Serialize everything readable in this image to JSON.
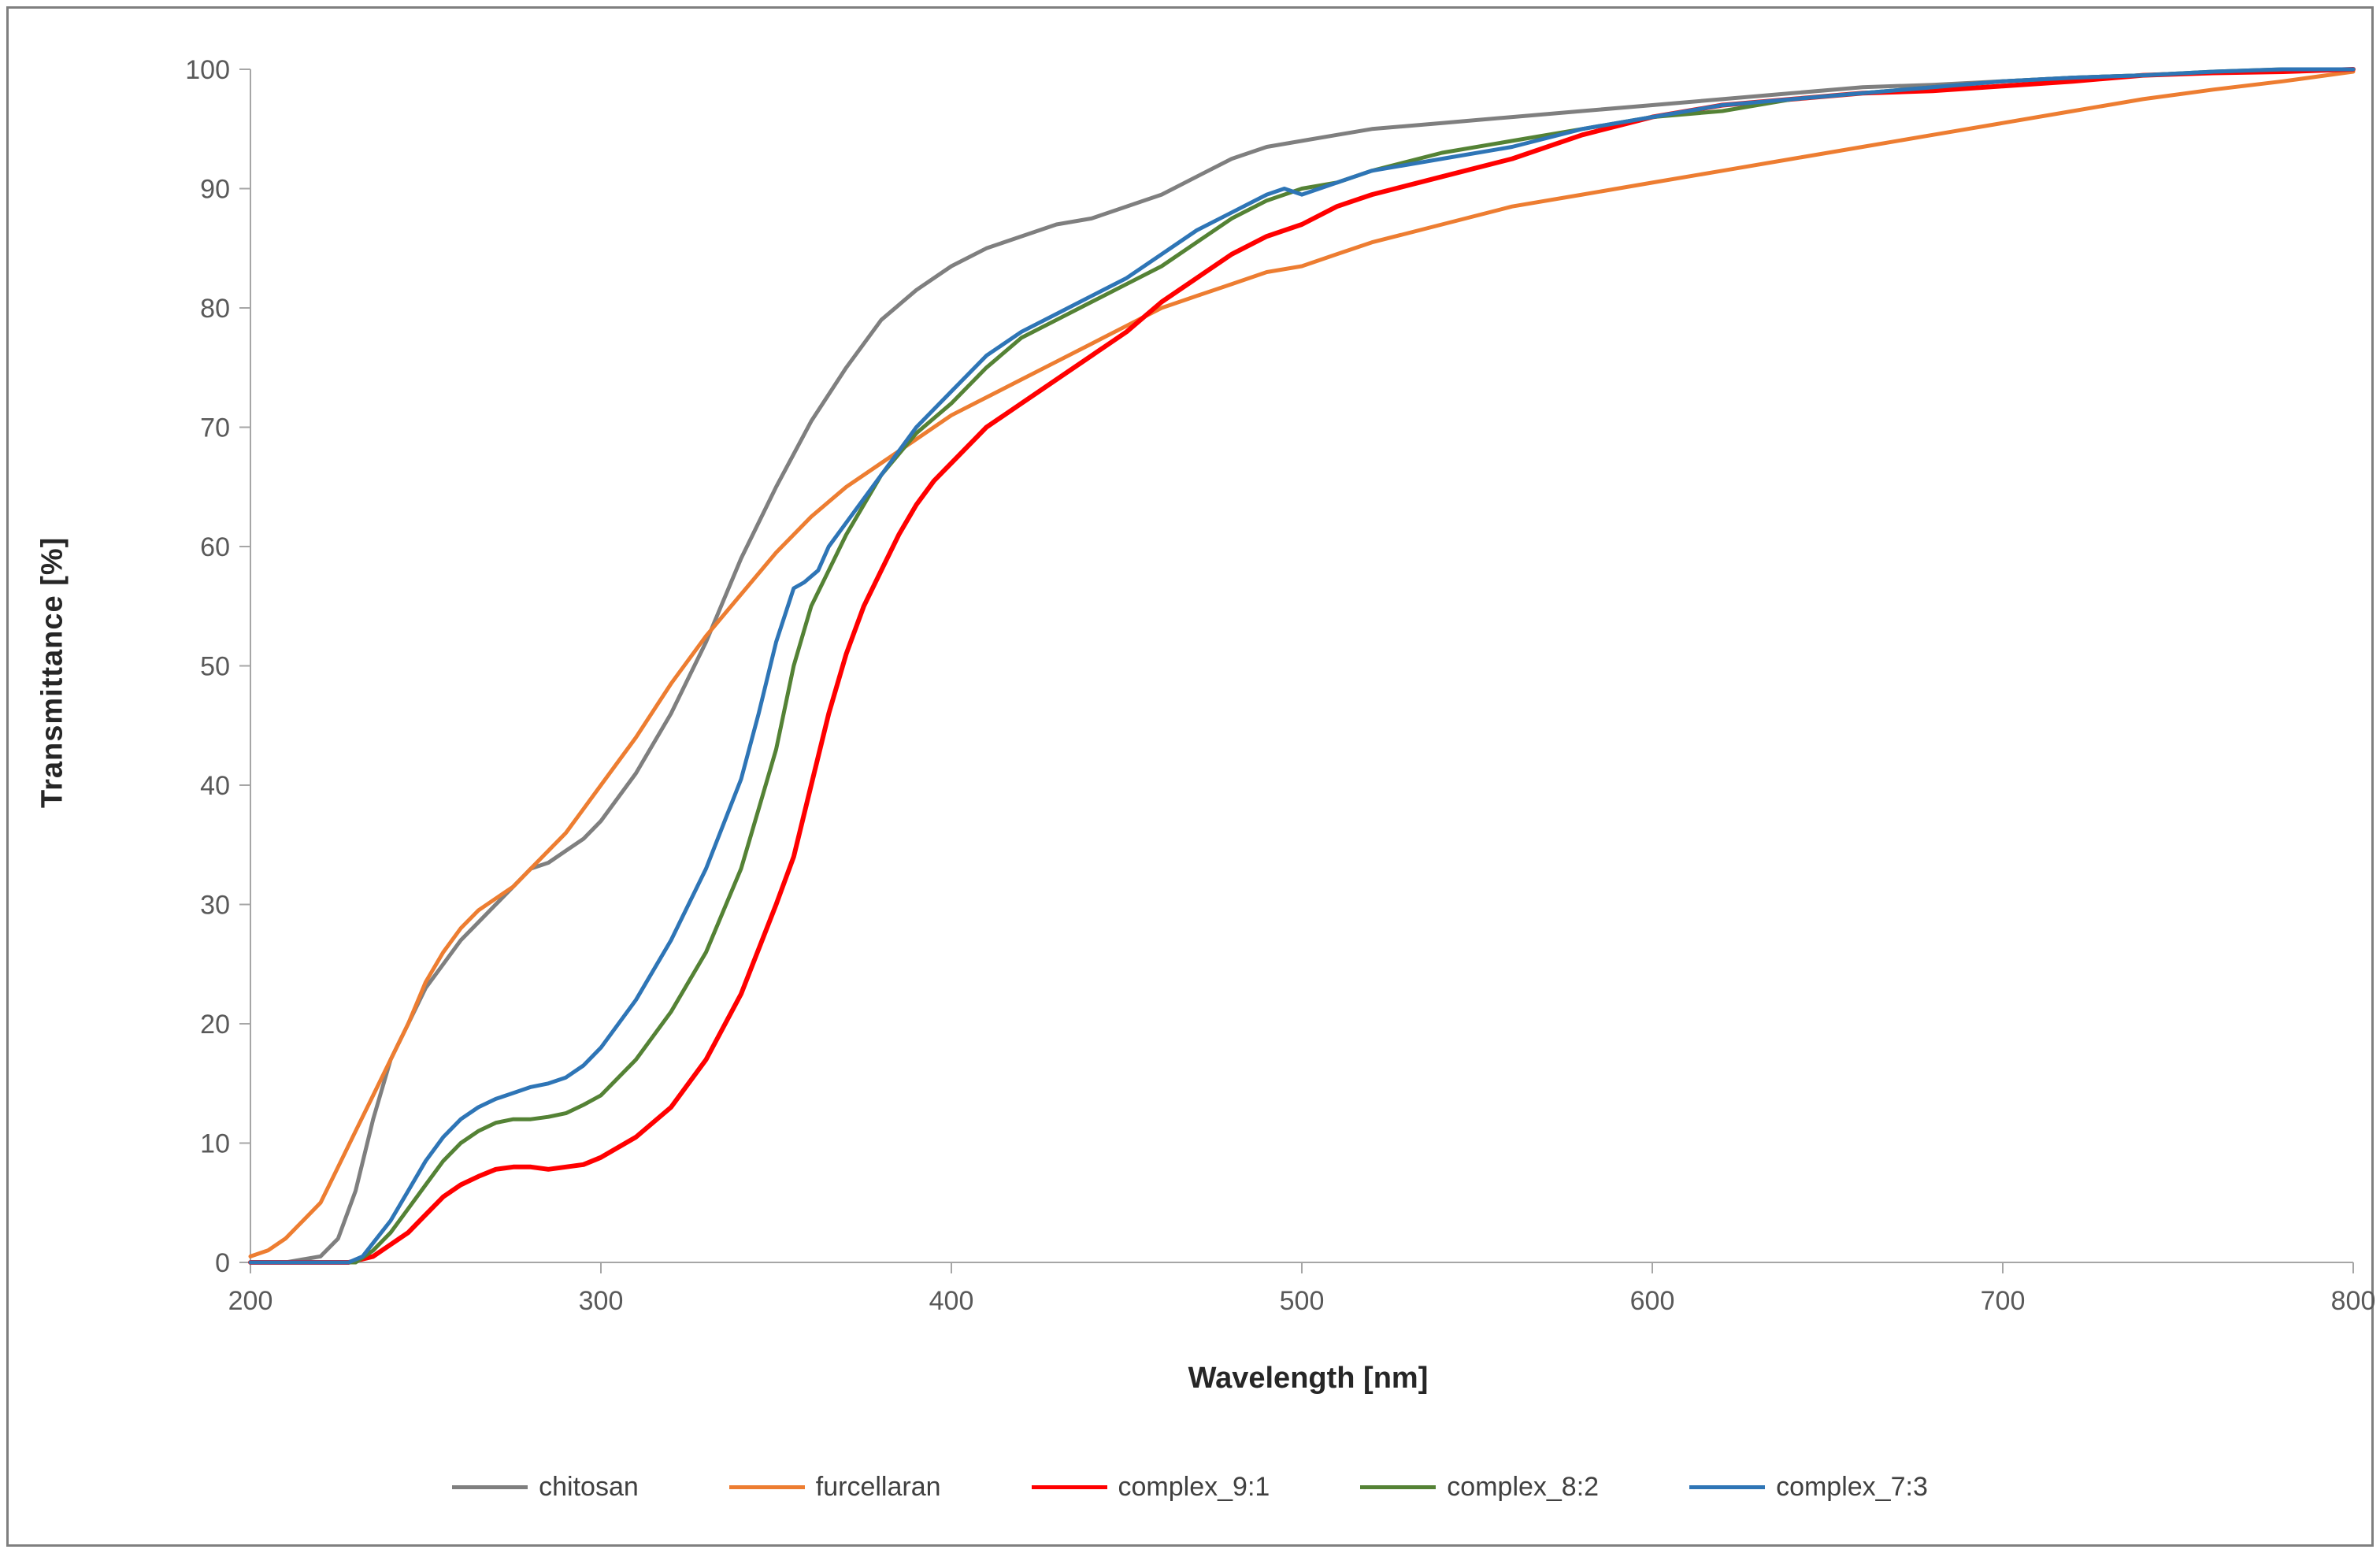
{
  "chart_data": {
    "type": "line",
    "title": "",
    "xlabel": "Wavelength [nm]",
    "ylabel": "Transmittance  [%]",
    "xlim": [
      200,
      800
    ],
    "ylim": [
      0,
      100
    ],
    "x_ticks": [
      200,
      300,
      400,
      500,
      600,
      700,
      800
    ],
    "y_ticks": [
      0,
      10,
      20,
      30,
      40,
      50,
      60,
      70,
      80,
      90,
      100
    ],
    "grid": false,
    "legend_position": "bottom",
    "axis_color": "#a6a6a6",
    "tick_label_color": "#595959",
    "series": [
      {
        "name": "chitosan",
        "color": "#7f7f7f",
        "width": 5,
        "points": [
          [
            200,
            0
          ],
          [
            210,
            0
          ],
          [
            220,
            0.5
          ],
          [
            225,
            2
          ],
          [
            230,
            6
          ],
          [
            235,
            12
          ],
          [
            240,
            17
          ],
          [
            245,
            20
          ],
          [
            250,
            23
          ],
          [
            255,
            25
          ],
          [
            260,
            27
          ],
          [
            265,
            28.5
          ],
          [
            270,
            30
          ],
          [
            275,
            31.5
          ],
          [
            280,
            33
          ],
          [
            285,
            33.5
          ],
          [
            290,
            34.5
          ],
          [
            295,
            35.5
          ],
          [
            300,
            37
          ],
          [
            310,
            41
          ],
          [
            320,
            46
          ],
          [
            330,
            52
          ],
          [
            340,
            59
          ],
          [
            350,
            65
          ],
          [
            360,
            70.5
          ],
          [
            370,
            75
          ],
          [
            380,
            79
          ],
          [
            390,
            81.5
          ],
          [
            400,
            83.5
          ],
          [
            410,
            85
          ],
          [
            420,
            86
          ],
          [
            430,
            87
          ],
          [
            440,
            87.5
          ],
          [
            450,
            88.5
          ],
          [
            460,
            89.5
          ],
          [
            470,
            91
          ],
          [
            480,
            92.5
          ],
          [
            490,
            93.5
          ],
          [
            500,
            94
          ],
          [
            510,
            94.5
          ],
          [
            520,
            95
          ],
          [
            540,
            95.5
          ],
          [
            560,
            96
          ],
          [
            580,
            96.5
          ],
          [
            600,
            97
          ],
          [
            620,
            97.5
          ],
          [
            640,
            98
          ],
          [
            660,
            98.5
          ],
          [
            680,
            98.7
          ],
          [
            700,
            99
          ],
          [
            720,
            99.3
          ],
          [
            740,
            99.5
          ],
          [
            760,
            99.7
          ],
          [
            780,
            99.8
          ],
          [
            800,
            100
          ]
        ]
      },
      {
        "name": "furcellaran",
        "color": "#ed7d31",
        "width": 5,
        "points": [
          [
            200,
            0.5
          ],
          [
            205,
            1
          ],
          [
            210,
            2
          ],
          [
            215,
            3.5
          ],
          [
            220,
            5
          ],
          [
            225,
            8
          ],
          [
            230,
            11
          ],
          [
            235,
            14
          ],
          [
            240,
            17
          ],
          [
            245,
            20
          ],
          [
            250,
            23.5
          ],
          [
            255,
            26
          ],
          [
            260,
            28
          ],
          [
            265,
            29.5
          ],
          [
            270,
            30.5
          ],
          [
            275,
            31.5
          ],
          [
            280,
            33
          ],
          [
            285,
            34.5
          ],
          [
            290,
            36
          ],
          [
            295,
            38
          ],
          [
            300,
            40
          ],
          [
            310,
            44
          ],
          [
            320,
            48.5
          ],
          [
            330,
            52.5
          ],
          [
            340,
            56
          ],
          [
            350,
            59.5
          ],
          [
            360,
            62.5
          ],
          [
            370,
            65
          ],
          [
            380,
            67
          ],
          [
            390,
            69
          ],
          [
            400,
            71
          ],
          [
            410,
            72.5
          ],
          [
            420,
            74
          ],
          [
            430,
            75.5
          ],
          [
            440,
            77
          ],
          [
            450,
            78.5
          ],
          [
            460,
            80
          ],
          [
            470,
            81
          ],
          [
            480,
            82
          ],
          [
            490,
            83
          ],
          [
            500,
            83.5
          ],
          [
            510,
            84.5
          ],
          [
            520,
            85.5
          ],
          [
            540,
            87
          ],
          [
            560,
            88.5
          ],
          [
            580,
            89.5
          ],
          [
            600,
            90.5
          ],
          [
            620,
            91.5
          ],
          [
            640,
            92.5
          ],
          [
            660,
            93.5
          ],
          [
            680,
            94.5
          ],
          [
            700,
            95.5
          ],
          [
            720,
            96.5
          ],
          [
            740,
            97.5
          ],
          [
            760,
            98.3
          ],
          [
            780,
            99
          ],
          [
            800,
            99.8
          ]
        ]
      },
      {
        "name": "complex_9:1",
        "color": "#ff0000",
        "width": 6,
        "points": [
          [
            200,
            0
          ],
          [
            228,
            0
          ],
          [
            235,
            0.5
          ],
          [
            240,
            1.5
          ],
          [
            245,
            2.5
          ],
          [
            250,
            4
          ],
          [
            255,
            5.5
          ],
          [
            260,
            6.5
          ],
          [
            265,
            7.2
          ],
          [
            270,
            7.8
          ],
          [
            275,
            8
          ],
          [
            280,
            8
          ],
          [
            285,
            7.8
          ],
          [
            290,
            8
          ],
          [
            295,
            8.2
          ],
          [
            300,
            8.8
          ],
          [
            310,
            10.5
          ],
          [
            320,
            13
          ],
          [
            330,
            17
          ],
          [
            340,
            22.5
          ],
          [
            350,
            30
          ],
          [
            355,
            34
          ],
          [
            360,
            40
          ],
          [
            365,
            46
          ],
          [
            370,
            51
          ],
          [
            375,
            55
          ],
          [
            380,
            58
          ],
          [
            385,
            61
          ],
          [
            390,
            63.5
          ],
          [
            395,
            65.5
          ],
          [
            400,
            67
          ],
          [
            410,
            70
          ],
          [
            420,
            72
          ],
          [
            430,
            74
          ],
          [
            440,
            76
          ],
          [
            450,
            78
          ],
          [
            460,
            80.5
          ],
          [
            470,
            82.5
          ],
          [
            480,
            84.5
          ],
          [
            490,
            86
          ],
          [
            500,
            87
          ],
          [
            510,
            88.5
          ],
          [
            520,
            89.5
          ],
          [
            540,
            91
          ],
          [
            560,
            92.5
          ],
          [
            580,
            94.5
          ],
          [
            600,
            96
          ],
          [
            620,
            97
          ],
          [
            640,
            97.5
          ],
          [
            660,
            98
          ],
          [
            680,
            98.2
          ],
          [
            700,
            98.6
          ],
          [
            720,
            99
          ],
          [
            740,
            99.5
          ],
          [
            760,
            99.7
          ],
          [
            780,
            99.8
          ],
          [
            800,
            100
          ]
        ]
      },
      {
        "name": "complex_8:2",
        "color": "#548235",
        "width": 5,
        "points": [
          [
            200,
            0
          ],
          [
            230,
            0
          ],
          [
            235,
            1
          ],
          [
            240,
            2.5
          ],
          [
            245,
            4.5
          ],
          [
            250,
            6.5
          ],
          [
            255,
            8.5
          ],
          [
            260,
            10
          ],
          [
            265,
            11
          ],
          [
            270,
            11.7
          ],
          [
            275,
            12
          ],
          [
            280,
            12
          ],
          [
            285,
            12.2
          ],
          [
            290,
            12.5
          ],
          [
            295,
            13.2
          ],
          [
            300,
            14
          ],
          [
            310,
            17
          ],
          [
            320,
            21
          ],
          [
            330,
            26
          ],
          [
            340,
            33
          ],
          [
            345,
            38
          ],
          [
            350,
            43
          ],
          [
            355,
            50
          ],
          [
            360,
            55
          ],
          [
            365,
            58
          ],
          [
            370,
            61
          ],
          [
            380,
            66
          ],
          [
            390,
            69.5
          ],
          [
            400,
            72
          ],
          [
            410,
            75
          ],
          [
            420,
            77.5
          ],
          [
            430,
            79
          ],
          [
            440,
            80.5
          ],
          [
            450,
            82
          ],
          [
            460,
            83.5
          ],
          [
            470,
            85.5
          ],
          [
            480,
            87.5
          ],
          [
            490,
            89
          ],
          [
            500,
            90
          ],
          [
            510,
            90.5
          ],
          [
            520,
            91.5
          ],
          [
            540,
            93
          ],
          [
            560,
            94
          ],
          [
            580,
            95
          ],
          [
            600,
            96
          ],
          [
            620,
            96.5
          ],
          [
            640,
            97.5
          ],
          [
            660,
            98
          ],
          [
            680,
            98.5
          ],
          [
            700,
            99
          ],
          [
            720,
            99.3
          ],
          [
            740,
            99.5
          ],
          [
            760,
            99.8
          ],
          [
            780,
            100
          ],
          [
            800,
            100
          ]
        ]
      },
      {
        "name": "complex_7:3",
        "color": "#2e75b6",
        "width": 5,
        "points": [
          [
            200,
            0
          ],
          [
            228,
            0
          ],
          [
            232,
            0.5
          ],
          [
            236,
            2
          ],
          [
            240,
            3.5
          ],
          [
            245,
            6
          ],
          [
            250,
            8.5
          ],
          [
            255,
            10.5
          ],
          [
            260,
            12
          ],
          [
            265,
            13
          ],
          [
            270,
            13.7
          ],
          [
            275,
            14.2
          ],
          [
            280,
            14.7
          ],
          [
            285,
            15
          ],
          [
            290,
            15.5
          ],
          [
            295,
            16.5
          ],
          [
            300,
            18
          ],
          [
            310,
            22
          ],
          [
            320,
            27
          ],
          [
            330,
            33
          ],
          [
            340,
            40.5
          ],
          [
            345,
            46
          ],
          [
            350,
            52
          ],
          [
            355,
            56.5
          ],
          [
            358,
            57
          ],
          [
            362,
            58
          ],
          [
            365,
            60
          ],
          [
            370,
            62
          ],
          [
            380,
            66
          ],
          [
            390,
            70
          ],
          [
            400,
            73
          ],
          [
            410,
            76
          ],
          [
            420,
            78
          ],
          [
            430,
            79.5
          ],
          [
            440,
            81
          ],
          [
            450,
            82.5
          ],
          [
            460,
            84.5
          ],
          [
            470,
            86.5
          ],
          [
            480,
            88
          ],
          [
            490,
            89.5
          ],
          [
            495,
            90
          ],
          [
            500,
            89.5
          ],
          [
            505,
            90
          ],
          [
            510,
            90.5
          ],
          [
            520,
            91.5
          ],
          [
            540,
            92.5
          ],
          [
            560,
            93.5
          ],
          [
            580,
            95
          ],
          [
            600,
            96
          ],
          [
            620,
            97
          ],
          [
            640,
            97.5
          ],
          [
            660,
            98
          ],
          [
            680,
            98.5
          ],
          [
            700,
            99
          ],
          [
            720,
            99.3
          ],
          [
            740,
            99.5
          ],
          [
            760,
            99.8
          ],
          [
            780,
            100
          ],
          [
            800,
            100
          ]
        ]
      }
    ]
  }
}
